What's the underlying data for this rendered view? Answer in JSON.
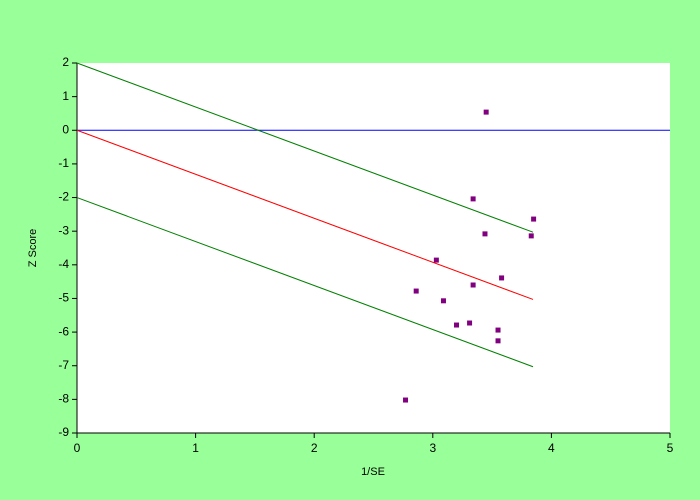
{
  "chart_data": {
    "type": "scatter",
    "xlabel": "1/SE",
    "ylabel": "Z Score",
    "x": [
      3.45,
      3.34,
      3.85,
      3.44,
      3.83,
      3.03,
      3.58,
      3.34,
      2.86,
      3.09,
      3.31,
      3.2,
      3.55,
      3.55,
      2.77
    ],
    "values": [
      0.54,
      -2.04,
      -2.64,
      -3.08,
      -3.14,
      -3.86,
      -4.39,
      -4.6,
      -4.78,
      -5.07,
      -5.73,
      -5.79,
      -5.94,
      -6.26,
      -8.02
    ],
    "color": "#800080",
    "lines": [
      {
        "color": "#0000ff",
        "x": [
          0,
          5
        ],
        "y": [
          0,
          0
        ]
      },
      {
        "color": "#ff0000",
        "x": [
          0,
          3.845
        ],
        "y": [
          0,
          -5.03
        ]
      },
      {
        "color": "#008000",
        "x": [
          0,
          3.845
        ],
        "y": [
          2,
          -3.03
        ]
      },
      {
        "color": "#008000",
        "x": [
          0,
          3.845
        ],
        "y": [
          -2,
          -7.03
        ]
      }
    ],
    "xlim": [
      0,
      5
    ],
    "xticks": [
      0,
      1,
      2,
      3,
      4,
      5
    ],
    "ylim": [
      -9,
      2
    ],
    "yticks": [
      -9,
      -8,
      -7,
      -6,
      -5,
      -4,
      -3,
      -2,
      -1,
      0,
      1,
      2
    ]
  }
}
